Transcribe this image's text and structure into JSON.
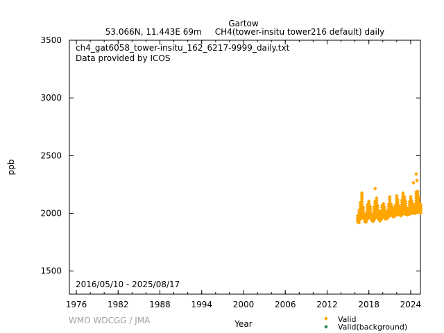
{
  "chart_data": {
    "type": "scatter",
    "title": "Gartow",
    "subtitle": "53.066N, 11.443E 69m     CH4(tower-insitu tower216 default) daily",
    "file_label": "ch4_gat6058_tower-insitu_162_6217-9999_daily.txt",
    "provider": "Data provided by ICOS",
    "date_range": "2016/05/10 - 2025/08/17",
    "credit": "WMO WDCGG / JMA",
    "xlabel": "Year",
    "ylabel": "ppb",
    "xlim": [
      1975,
      2025.4
    ],
    "ylim": [
      1300,
      3500
    ],
    "xticks": [
      "1976",
      "1982",
      "1988",
      "1994",
      "2000",
      "2006",
      "2012",
      "2018",
      "2024"
    ],
    "yticks": [
      "1500",
      "2000",
      "2500",
      "3000",
      "3500"
    ],
    "legend": [
      {
        "label": "Valid",
        "color": "#ffa500"
      },
      {
        "label": "Valid(background)",
        "color": "#2e8b57"
      }
    ],
    "legend_position": "bottom-right",
    "series": [
      {
        "name": "Valid",
        "color": "#ffa500",
        "x": [
          2016.4,
          2016.6,
          2016.8,
          2017.0,
          2017.2,
          2017.4,
          2017.6,
          2017.8,
          2018.0,
          2018.2,
          2018.4,
          2018.6,
          2018.9,
          2019.1,
          2019.4,
          2019.6,
          2019.9,
          2020.1,
          2020.4,
          2020.7,
          2021.0,
          2021.2,
          2021.5,
          2021.8,
          2022.0,
          2022.3,
          2022.6,
          2022.9,
          2023.1,
          2023.4,
          2023.7,
          2024.0,
          2024.3,
          2024.6,
          2024.8,
          2025.0,
          2025.3,
          2025.6
        ],
        "low": [
          1925,
          1920,
          1950,
          1960,
          1960,
          1930,
          1925,
          1950,
          1960,
          1970,
          1940,
          1930,
          1960,
          1970,
          1950,
          1935,
          1960,
          1975,
          1950,
          1960,
          1980,
          1990,
          1970,
          1980,
          1990,
          1990,
          1980,
          1995,
          2000,
          1990,
          1990,
          2000,
          2005,
          2000,
          2005,
          2010,
          2010,
          2000
        ],
        "high": [
          1980,
          2030,
          2110,
          2180,
          2060,
          1990,
          2000,
          2080,
          2110,
          2070,
          2010,
          2000,
          2110,
          2140,
          2030,
          1990,
          2070,
          2100,
          2030,
          2020,
          2160,
          2090,
          2040,
          2080,
          2160,
          2080,
          2050,
          2180,
          2150,
          2060,
          2060,
          2160,
          2090,
          2080,
          2200,
          2200,
          2090,
          2070
        ]
      }
    ],
    "outliers": {
      "x": [
        2018.9,
        2024.4,
        2024.8,
        2024.9
      ],
      "y": [
        2215,
        2265,
        2340,
        2285
      ]
    }
  }
}
